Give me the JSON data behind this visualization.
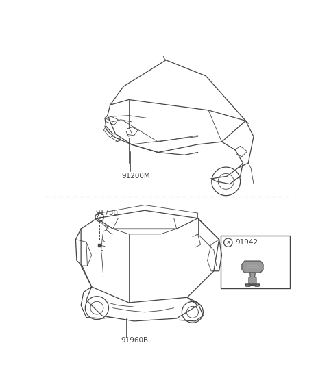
{
  "bg_color": "#ffffff",
  "line_color": "#444444",
  "label_color": "#444444",
  "label_91200M": "91200M",
  "label_91730": "91730",
  "label_91960B": "91960B",
  "label_91942": "91942",
  "label_a": "a",
  "lw_main": 0.9,
  "lw_thin": 0.6,
  "font_size": 7.5
}
